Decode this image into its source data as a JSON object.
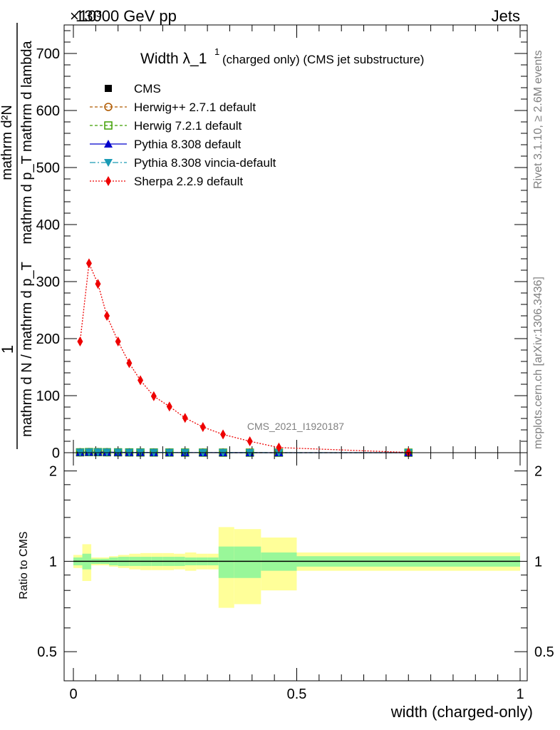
{
  "header": {
    "left": "13000 GeV pp",
    "right": "Jets",
    "exponent": "×10³"
  },
  "side_labels": {
    "rivet": "Rivet 3.1.10, ≥ 2.6M events",
    "mcplots": "mcplots.cern.ch [arXiv:1306.3436]"
  },
  "watermark": "CMS_2021_I1920187",
  "chart_data": [
    {
      "type": "line",
      "title_main": "Width λ_1",
      "title_sup": "1",
      "title_rest": "(charged only) (CMS jet substructure)",
      "ylabel_num": "1",
      "ylabel_den": "mathrm d N / mathrm d p_T",
      "ylabel_right_num": "mathrm d²N",
      "ylabel_right_den": "mathrm d p_T mathrm d lambda",
      "xlim": [
        0,
        1
      ],
      "ylim": [
        0,
        750
      ],
      "yticks": [
        "0",
        "100",
        "200",
        "300",
        "400",
        "500",
        "600",
        "700"
      ],
      "legend_position": "top-left",
      "series": [
        {
          "name": "CMS",
          "color": "#000000",
          "marker": "square",
          "x": [
            0.015,
            0.035,
            0.055,
            0.075,
            0.1,
            0.125,
            0.15,
            0.18,
            0.215,
            0.25,
            0.29,
            0.335,
            0.395,
            0.46,
            0.75
          ],
          "y": [
            0.6,
            1.0,
            0.9,
            0.75,
            0.6,
            0.48,
            0.4,
            0.31,
            0.25,
            0.19,
            0.14,
            0.1,
            0.065,
            0.03,
            0.003
          ]
        },
        {
          "name": "Herwig++ 2.7.1 default",
          "color": "#b05a00",
          "marker": "circle-open",
          "x": [
            0.015,
            0.035,
            0.055,
            0.075,
            0.1,
            0.125,
            0.15,
            0.18,
            0.215,
            0.25,
            0.29,
            0.335,
            0.395,
            0.46,
            0.75
          ],
          "y": [
            0.6,
            1.0,
            0.9,
            0.75,
            0.6,
            0.48,
            0.4,
            0.31,
            0.25,
            0.19,
            0.14,
            0.1,
            0.065,
            0.03,
            0.003
          ]
        },
        {
          "name": "Herwig 7.2.1 default",
          "color": "#3f9f00",
          "marker": "square-open",
          "x": [
            0.015,
            0.035,
            0.055,
            0.075,
            0.1,
            0.125,
            0.15,
            0.18,
            0.215,
            0.25,
            0.29,
            0.335,
            0.395,
            0.46,
            0.75
          ],
          "y": [
            0.6,
            1.0,
            0.9,
            0.75,
            0.6,
            0.48,
            0.4,
            0.31,
            0.25,
            0.19,
            0.14,
            0.1,
            0.065,
            0.03,
            0.003
          ]
        },
        {
          "name": "Pythia 8.308 default",
          "color": "#0000cc",
          "marker": "triangle",
          "x": [
            0.015,
            0.035,
            0.055,
            0.075,
            0.1,
            0.125,
            0.15,
            0.18,
            0.215,
            0.25,
            0.29,
            0.335,
            0.395,
            0.46,
            0.75
          ],
          "y": [
            0.6,
            1.0,
            0.9,
            0.75,
            0.6,
            0.48,
            0.4,
            0.31,
            0.25,
            0.19,
            0.14,
            0.1,
            0.065,
            0.03,
            0.003
          ]
        },
        {
          "name": "Pythia 8.308 vincia-default",
          "color": "#1a9bb5",
          "marker": "triangle-down",
          "x": [
            0.015,
            0.035,
            0.055,
            0.075,
            0.1,
            0.125,
            0.15,
            0.18,
            0.215,
            0.25,
            0.29,
            0.335,
            0.395,
            0.46,
            0.75
          ],
          "y": [
            0.6,
            1.0,
            0.9,
            0.75,
            0.6,
            0.48,
            0.4,
            0.31,
            0.25,
            0.19,
            0.14,
            0.1,
            0.065,
            0.03,
            0.003
          ]
        },
        {
          "name": "Sherpa 2.2.9 default",
          "color": "#ee0000",
          "marker": "diamond",
          "x": [
            0.015,
            0.035,
            0.055,
            0.075,
            0.1,
            0.125,
            0.15,
            0.18,
            0.215,
            0.25,
            0.29,
            0.335,
            0.395,
            0.46,
            0.75
          ],
          "y": [
            195,
            332,
            296,
            240,
            195,
            157,
            127,
            99,
            81,
            61,
            45,
            32,
            20,
            9,
            0.4
          ]
        }
      ]
    },
    {
      "type": "area",
      "ylabel": "Ratio to CMS",
      "xlabel": "width (charged-only)",
      "xlim": [
        0,
        1
      ],
      "ylim": [
        0.4,
        2.3
      ],
      "log_y": true,
      "xticks": [
        "0",
        "0.5",
        "1"
      ],
      "yticks": [
        "0.5",
        "1",
        "2"
      ],
      "reference": 1,
      "bins": [
        0,
        0.02,
        0.04,
        0.06,
        0.08,
        0.1,
        0.125,
        0.15,
        0.175,
        0.2,
        0.225,
        0.25,
        0.275,
        0.3,
        0.325,
        0.36,
        0.42,
        0.5,
        1.0
      ],
      "stat_band": [
        0.03,
        0.06,
        0.02,
        0.02,
        0.03,
        0.035,
        0.035,
        0.035,
        0.035,
        0.035,
        0.035,
        0.03,
        0.03,
        0.03,
        0.12,
        0.12,
        0.07,
        0.04
      ],
      "total_band": [
        0.05,
        0.14,
        0.03,
        0.03,
        0.04,
        0.05,
        0.06,
        0.065,
        0.065,
        0.065,
        0.06,
        0.07,
        0.06,
        0.06,
        0.3,
        0.28,
        0.2,
        0.07
      ],
      "stat_color": "#99f799",
      "total_color": "#ffff99"
    }
  ]
}
